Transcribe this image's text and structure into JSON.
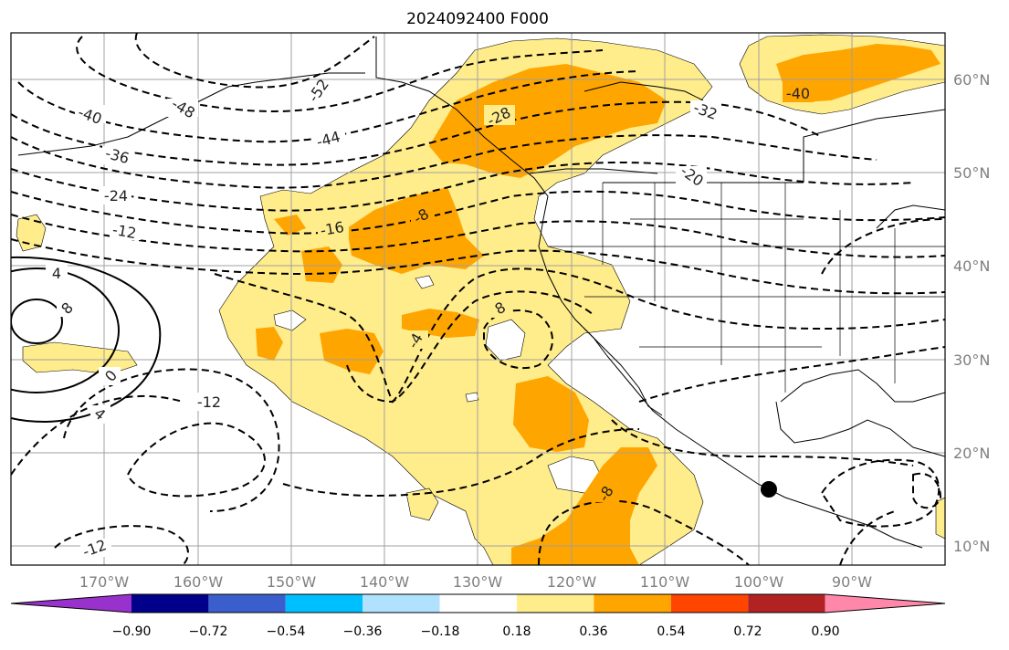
{
  "title": "2024092400 F000",
  "lon_labels": [
    "170°W",
    "160°W",
    "150°W",
    "140°W",
    "130°W",
    "120°W",
    "110°W",
    "100°W",
    "90°W"
  ],
  "lat_labels": [
    "60°N",
    "50°N",
    "40°N",
    "30°N",
    "20°N",
    "10°N"
  ],
  "contour_labels": [
    "-52",
    "-48",
    "-44",
    "-40",
    "-36",
    "-32",
    "-28",
    "-24",
    "-20",
    "-16",
    "-12",
    "-8",
    "-4",
    "0",
    "4",
    "8",
    "-40",
    "-12",
    "-8",
    "4",
    "8",
    "-12"
  ],
  "colorbar": {
    "ticks": [
      "−0.90",
      "−0.72",
      "−0.54",
      "−0.36",
      "−0.18",
      "0.18",
      "0.36",
      "0.54",
      "0.72",
      "0.90"
    ],
    "colors": [
      "#9932cc",
      "#00008b",
      "#3a5fcd",
      "#00bfff",
      "#b0e2ff",
      "#ffffff",
      "#ffec8b",
      "#ffa500",
      "#ff4500",
      "#b22222",
      "#ff88aa"
    ]
  },
  "fill_colors": {
    "light": "#ffec8b",
    "medium": "#ffa500"
  }
}
